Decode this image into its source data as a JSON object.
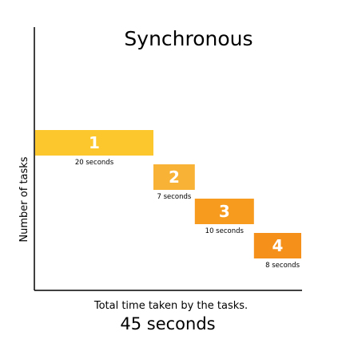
{
  "chart_data": {
    "type": "bar",
    "orientation": "horizontal-sequential",
    "title": "Synchronous",
    "ylabel": "Number of tasks",
    "xlabel": "Total time taken by the tasks.",
    "total_label": "45 seconds",
    "xlim": [
      0,
      45
    ],
    "grid": false,
    "series": [
      {
        "task": "1",
        "start": 0,
        "duration": 20,
        "label": "20 seconds",
        "color": "#fcc72c"
      },
      {
        "task": "2",
        "start": 20,
        "duration": 7,
        "label": "7 seconds",
        "color": "#f8b235"
      },
      {
        "task": "3",
        "start": 27,
        "duration": 10,
        "label": "10 seconds",
        "color": "#f79b1e"
      },
      {
        "task": "4",
        "start": 37,
        "duration": 8,
        "label": "8 seconds",
        "color": "#f5911a"
      }
    ]
  }
}
